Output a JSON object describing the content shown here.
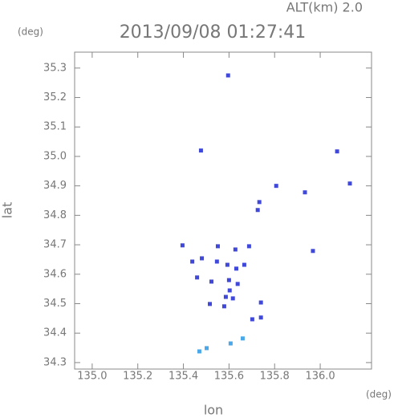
{
  "chart_data": {
    "type": "scatter",
    "title": "2013/09/08 01:27:41",
    "subtitle": "ALT(km) 2.0",
    "x_label": "lon",
    "y_label": "lat",
    "x_unit": "(deg)",
    "y_unit": "(deg)",
    "xlim": [
      134.923,
      136.225
    ],
    "ylim": [
      34.278,
      35.354
    ],
    "xticks": [
      {
        "value": 135,
        "label": "135.0"
      },
      135.2,
      135.4,
      135.6,
      135.8,
      {
        "value": 136,
        "label": "136.0"
      }
    ],
    "yticks": [
      34.3,
      34.4,
      34.5,
      34.6,
      34.7,
      34.8,
      34.9,
      {
        "value": 35,
        "label": "35.0"
      },
      35.1,
      35.2,
      35.3
    ],
    "series": [
      {
        "color": "#3f48d8",
        "x": [
          135.596,
          135.477,
          136.074,
          135.807,
          135.933,
          136.13,
          135.733,
          135.726,
          135.396,
          135.551,
          135.688,
          135.628,
          135.968,
          135.481,
          135.439,
          135.547,
          135.593,
          135.667,
          135.632,
          135.46,
          135.523,
          135.6,
          135.603,
          135.638,
          135.586,
          135.617,
          135.579,
          135.74,
          135.516,
          135.702,
          135.74
        ],
        "values": [
          35.275,
          35.02,
          35.017,
          34.9,
          34.878,
          34.908,
          34.845,
          34.818,
          34.698,
          34.695,
          34.695,
          34.684,
          34.679,
          34.654,
          34.643,
          34.643,
          34.632,
          34.632,
          34.619,
          34.589,
          34.575,
          34.58,
          34.545,
          34.567,
          34.523,
          34.518,
          34.491,
          34.504,
          34.499,
          34.447,
          34.453
        ]
      },
      {
        "color": "#4aa8e8",
        "x": [
          135.502,
          135.47,
          135.607,
          135.66
        ],
        "values": [
          34.349,
          34.338,
          34.365,
          34.382
        ]
      }
    ]
  }
}
